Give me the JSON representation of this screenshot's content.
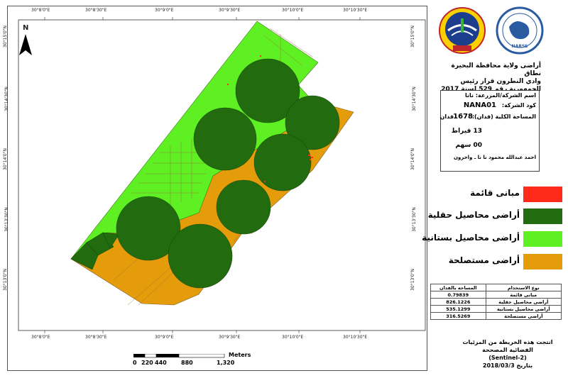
{
  "coords": {
    "top": [
      "30°8'0\"E",
      "30°8'30\"E",
      "30°9'0\"E",
      "30°9'30\"E",
      "30°10'0\"E",
      "30°10'30\"E"
    ],
    "bottom": [
      "30°8'0\"E",
      "30°8'30\"E",
      "30°9'0\"E",
      "30°9'30\"E",
      "30°10'0\"E",
      "30°10'30\"E"
    ],
    "left": [
      "30°15'0\"N",
      "30°14'30\"N",
      "30°14'0\"N",
      "30°13'30\"N",
      "30°13'0\"N"
    ],
    "right": [
      "30°15'0\"N",
      "30°14'30\"N",
      "30°14'0\"N",
      "30°13'30\"N",
      "30°13'0\"N"
    ]
  },
  "north_label": "N",
  "logo_left": {
    "name": "NARSS",
    "caption": "NARSS"
  },
  "title_lines": [
    "أراضى ولاية محافظة البحيرة نطاق",
    "وادي النطرون قرار رئيس",
    "الجمهورية رقم 529 لسنة 2017"
  ],
  "info": {
    "company_label": "اسم الشركة/المزرعة: نانا",
    "code_label": "كود الشركة:",
    "code_value": "NANA01",
    "area_label": "المساحة الكلية (فدان):",
    "area_value": "1678",
    "area_unit": "فدان",
    "qirat": "13 قيراط",
    "sahm": "00 سهم",
    "owners": "احمد عبدالله محمود نا نا ـ واخرون"
  },
  "legend": [
    {
      "label": "مبانى قائمة",
      "color": "#ff2a1a"
    },
    {
      "label": "أراضى محاصيل حقلية",
      "color": "#226b0e"
    },
    {
      "label": "أراضى محاصيل بستانية",
      "color": "#5ef022"
    },
    {
      "label": "أراضى مستصلحة",
      "color": "#e59c0a"
    }
  ],
  "area_table": {
    "headers": [
      "نوع الاستخدام",
      "المساحه بالفدان"
    ],
    "rows": [
      [
        "مبانى قائمة",
        "0.79839"
      ],
      [
        "أراضى محاصيل حقلية",
        "826.1226"
      ],
      [
        "أراضى محاصيل بستانية",
        "535.1299"
      ],
      [
        "أراضى مستصلحة",
        "316.5269"
      ]
    ]
  },
  "source_lines": [
    "انتجت هذه الخريطة من المرئيات الفضائية المصححة",
    "(Sentinel-2)",
    "بتاريخ 2018/03/3"
  ],
  "scale": {
    "unit": "Meters",
    "ticks": [
      "0",
      "220",
      "440",
      "880",
      "1,320"
    ]
  }
}
